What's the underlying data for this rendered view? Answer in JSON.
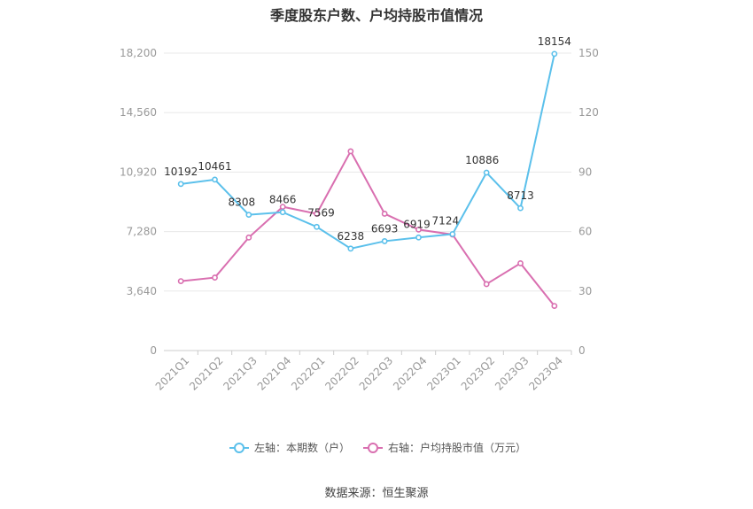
{
  "chart_data": {
    "type": "line",
    "title": "季度股东户数、户均持股市值情况",
    "categories": [
      "2021Q1",
      "2021Q2",
      "2021Q3",
      "2021Q4",
      "2022Q1",
      "2022Q2",
      "2022Q3",
      "2022Q4",
      "2023Q1",
      "2023Q2",
      "2023Q3",
      "2023Q4"
    ],
    "left_axis": {
      "ylim": [
        0,
        18200
      ],
      "ticks": [
        "0",
        "3,640",
        "7,280",
        "10,920",
        "14,560",
        "18,200"
      ]
    },
    "right_axis": {
      "ylim": [
        0,
        150
      ],
      "ticks": [
        "0",
        "30",
        "60",
        "90",
        "120",
        "150"
      ]
    },
    "series": [
      {
        "name": "左轴：本期数（户）",
        "axis": "left",
        "color": "#5bc0eb",
        "values": [
          10192,
          10461,
          8308,
          8466,
          7569,
          6238,
          6693,
          6919,
          7124,
          10886,
          8713,
          18154
        ],
        "labels": [
          "10192",
          "10461",
          "8308",
          "8466",
          "7569",
          "6238",
          "6693",
          "6919",
          "7124",
          "10886",
          "8713",
          "18154"
        ]
      },
      {
        "name": "右轴：户均持股市值（万元）",
        "axis": "right",
        "color": "#d96fb0",
        "values": [
          35,
          36.8,
          57,
          72.5,
          69,
          100.5,
          69,
          61,
          58.5,
          33.5,
          44,
          22.5
        ]
      }
    ],
    "legend_position": "bottom-center",
    "grid": true
  },
  "source": "数据来源：恒生聚源"
}
